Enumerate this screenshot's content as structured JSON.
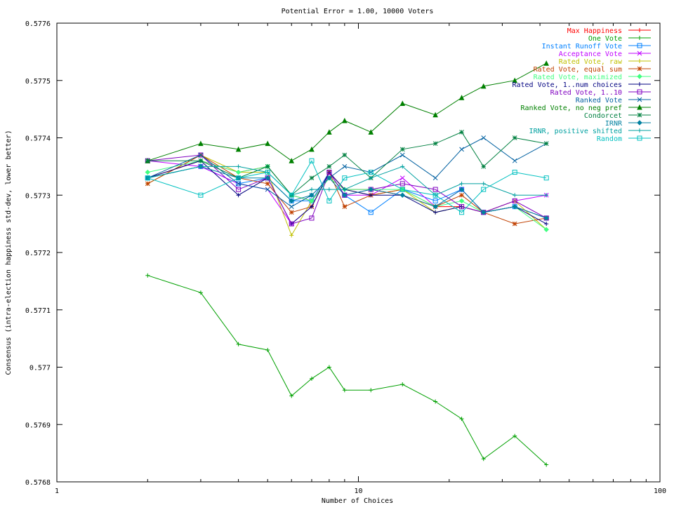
{
  "chart_data": {
    "type": "line",
    "title": "Potential Error = 1.00, 10000 Voters",
    "xlabel": "Number of Choices",
    "ylabel": "Consensus (intra-election happiness std-dev, lower better)",
    "xscale": "log",
    "xlim": [
      1,
      100
    ],
    "ylim": [
      0.5768,
      0.5776
    ],
    "x_ticks": [
      1,
      10,
      100
    ],
    "x_tick_labels": [
      "1",
      "10",
      "100"
    ],
    "y_ticks": [
      0.5768,
      0.5769,
      0.577,
      0.5771,
      0.5772,
      0.5773,
      0.5774,
      0.5775,
      0.5776
    ],
    "y_tick_labels": [
      "0.5768",
      "0.5769",
      "0.577",
      "0.5771",
      "0.5772",
      "0.5773",
      "0.5774",
      "0.5775",
      "0.5776"
    ],
    "grid": false,
    "legend_position": "top-right",
    "x": [
      2,
      3,
      4,
      5,
      6,
      7,
      8,
      9,
      11,
      14,
      18,
      22,
      26,
      33,
      42
    ],
    "series": [
      {
        "name": "Max Happiness",
        "color": "#ff0000",
        "marker": "plus",
        "values": [
          0.57733,
          0.57736,
          0.57734,
          0.57735,
          0.5773,
          0.57729,
          0.57734,
          0.57731,
          0.57731,
          0.5773,
          0.57728,
          0.57728,
          0.57727,
          0.57728,
          0.57726
        ]
      },
      {
        "name": "One Vote",
        "color": "#00a000",
        "marker": "plus",
        "values": [
          0.57716,
          0.57713,
          0.57704,
          0.57703,
          0.57695,
          0.57698,
          0.577,
          0.57696,
          0.57696,
          0.57697,
          0.57694,
          0.57691,
          0.57684,
          0.57688,
          0.57683
        ]
      },
      {
        "name": "Instant Runoff Vote",
        "color": "#0080ff",
        "marker": "square",
        "values": [
          0.57733,
          0.57735,
          0.57732,
          0.57733,
          0.57729,
          0.57729,
          0.57734,
          0.5773,
          0.57727,
          0.57731,
          0.57729,
          0.57731,
          0.57727,
          0.57728,
          0.57726
        ]
      },
      {
        "name": "Acceptance Vote",
        "color": "#c000ff",
        "marker": "x",
        "values": [
          0.57736,
          0.57735,
          0.57732,
          0.57731,
          0.57725,
          0.57728,
          0.57734,
          0.5773,
          0.5773,
          0.57733,
          0.57728,
          0.57731,
          0.57727,
          0.57729,
          0.5773
        ]
      },
      {
        "name": "Rated Vote, raw",
        "color": "#c0c000",
        "marker": "plus",
        "values": [
          0.57732,
          0.57737,
          0.57734,
          0.57734,
          0.57723,
          0.57729,
          0.57733,
          0.57731,
          0.5773,
          0.57731,
          0.57727,
          0.57728,
          0.57727,
          0.57729,
          0.57724
        ]
      },
      {
        "name": "Rated Vote, equal sum",
        "color": "#c04000",
        "marker": "star",
        "values": [
          0.57732,
          0.57737,
          0.57733,
          0.57732,
          0.57727,
          0.57728,
          0.57734,
          0.57728,
          0.5773,
          0.57731,
          0.57728,
          0.5773,
          0.57727,
          0.57725,
          0.57726
        ]
      },
      {
        "name": "Rated Vote, maximized",
        "color": "#40ff80",
        "marker": "diamond",
        "values": [
          0.57734,
          0.57736,
          0.57734,
          0.57735,
          0.5773,
          0.57729,
          0.57733,
          0.57731,
          0.57731,
          0.57731,
          0.57728,
          0.57729,
          0.57727,
          0.57728,
          0.57724
        ]
      },
      {
        "name": "Rated Vote, 1..num choices",
        "color": "#000080",
        "marker": "plus",
        "values": [
          0.57733,
          0.57736,
          0.5773,
          0.57733,
          0.57725,
          0.57728,
          0.57734,
          0.57731,
          0.5773,
          0.5773,
          0.57727,
          0.57728,
          0.57727,
          0.57728,
          0.57725
        ]
      },
      {
        "name": "Rated Vote, 1..10",
        "color": "#8000c0",
        "marker": "square",
        "values": [
          0.57736,
          0.57737,
          0.57731,
          0.57733,
          0.57725,
          0.57726,
          0.57734,
          0.5773,
          0.57731,
          0.57732,
          0.57731,
          0.57728,
          0.57727,
          0.57729,
          0.57726
        ]
      },
      {
        "name": "Ranked Vote",
        "color": "#0060a0",
        "marker": "x",
        "values": [
          0.57733,
          0.57737,
          0.57732,
          0.57731,
          0.57728,
          0.5773,
          0.57733,
          0.57735,
          0.57734,
          0.57737,
          0.57733,
          0.57738,
          0.5774,
          0.57736,
          0.57739
        ]
      },
      {
        "name": "Ranked Vote, no neg pref",
        "color": "#008000",
        "marker": "triangle",
        "values": [
          0.57736,
          0.57739,
          0.57738,
          0.57739,
          0.57736,
          0.57738,
          0.57741,
          0.57743,
          0.57741,
          0.57746,
          0.57744,
          0.57747,
          0.57749,
          0.5775,
          0.57753
        ]
      },
      {
        "name": "Condorcet",
        "color": "#008040",
        "marker": "star",
        "values": [
          0.57736,
          0.57736,
          0.57733,
          0.57735,
          0.5773,
          0.57733,
          0.57735,
          0.57737,
          0.57733,
          0.57738,
          0.57739,
          0.57741,
          0.57735,
          0.5774,
          0.57739
        ]
      },
      {
        "name": "IRNR",
        "color": "#0080a0",
        "marker": "diamond",
        "values": [
          0.57733,
          0.57735,
          0.57733,
          0.57733,
          0.57729,
          0.5773,
          0.57733,
          0.5773,
          0.57731,
          0.5773,
          0.57728,
          0.57731,
          0.57727,
          0.57728,
          0.57726
        ]
      },
      {
        "name": "IRNR, positive shifted",
        "color": "#00a0a0",
        "marker": "plus",
        "values": [
          0.57733,
          0.57735,
          0.57735,
          0.57734,
          0.5773,
          0.57731,
          0.57731,
          0.57731,
          0.57733,
          0.57735,
          0.5773,
          0.57732,
          0.57732,
          0.5773,
          0.5773
        ]
      },
      {
        "name": "Random",
        "color": "#00c0c0",
        "marker": "square",
        "values": [
          0.57733,
          0.5773,
          0.57733,
          0.57734,
          0.5773,
          0.57736,
          0.57729,
          0.57733,
          0.57734,
          0.57731,
          0.5773,
          0.57727,
          0.57731,
          0.57734,
          0.57733
        ]
      }
    ]
  }
}
